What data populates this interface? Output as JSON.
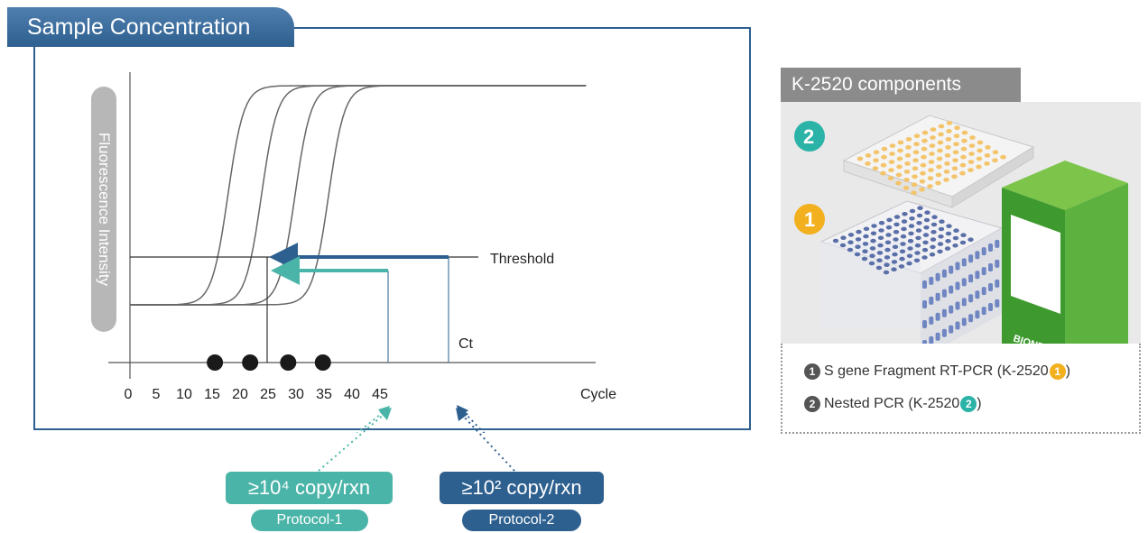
{
  "header": {
    "title": "Sample Concentration"
  },
  "chart_data": {
    "type": "line",
    "ylabel": "Fluorescence Intensity",
    "xlabel": "Cycle",
    "x_ticks": [
      "0",
      "5",
      "10",
      "15",
      "20",
      "25",
      "30",
      "35",
      "40",
      "45"
    ],
    "threshold_label": "Threshold",
    "ct_label": "Ct",
    "ct_markers": [
      15.5,
      21.8,
      28.6,
      34.8
    ],
    "curves": [
      {
        "midpoint": 17.5
      },
      {
        "midpoint": 23.5
      },
      {
        "midpoint": 29.5
      },
      {
        "midpoint": 35.5
      }
    ]
  },
  "protocols": [
    {
      "value": "≥10⁴ copy/rxn",
      "name": "Protocol-1",
      "color": "#4bb4a8"
    },
    {
      "value": "≥10² copy/rxn",
      "name": "Protocol-2",
      "color": "#2d5f8f"
    }
  ],
  "components": {
    "header": "K-2520 components",
    "box_brand": "BIONEER",
    "plate_numbers": [
      "2",
      "1"
    ],
    "items": [
      {
        "num": "1",
        "text": "S gene Fragment RT-PCR (K-2520 ",
        "badge": "1",
        "close": ")"
      },
      {
        "num": "2",
        "text": "Nested PCR (K-2520 ",
        "badge": "2",
        "close": ")"
      }
    ]
  },
  "colors": {
    "navy": "#2d5f8f",
    "teal": "#4bb4a8",
    "orange": "#f2b01e",
    "green": "#4eaa3a"
  }
}
